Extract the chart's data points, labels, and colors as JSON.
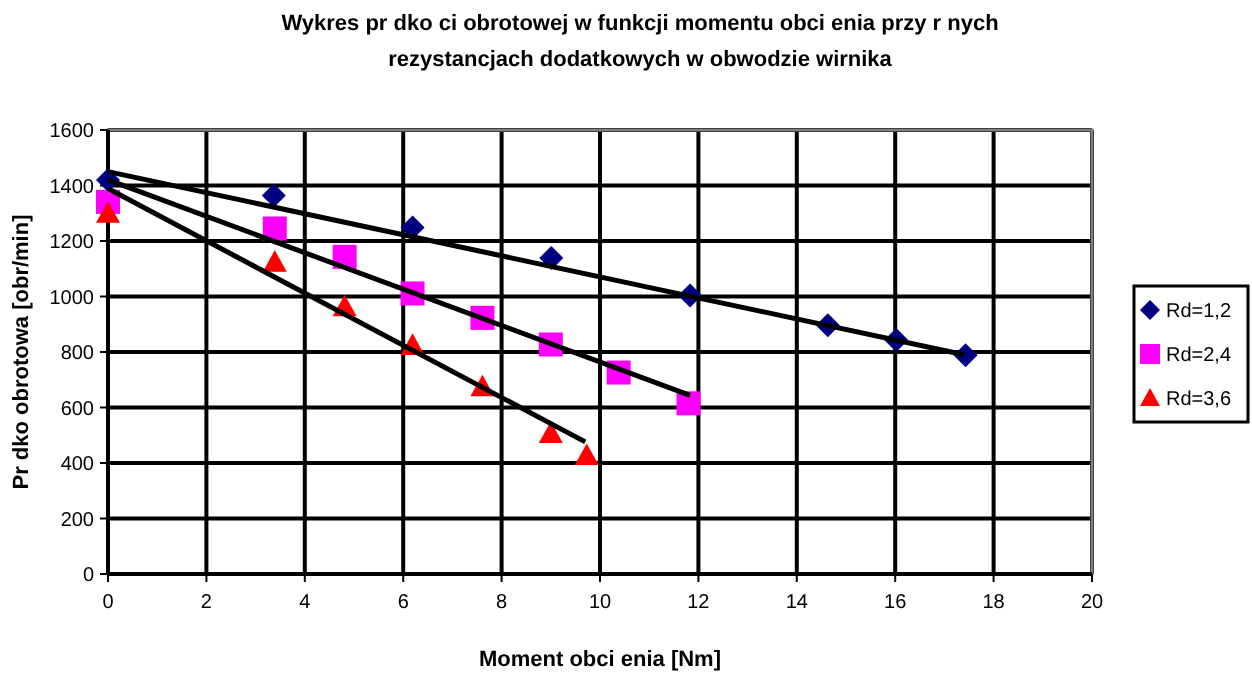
{
  "chart_data": {
    "type": "scatter",
    "title": "Wykres pr  dko  ci obrotowej w funkcji momentu obci    enia przy r    nych",
    "subtitle": "rezystancjach dodatkowych w obwodzie wirnika",
    "xlabel": "Moment obci    enia [Nm]",
    "ylabel": "Pr  dko    obrotowa [obr/min]",
    "xlim": [
      0,
      20
    ],
    "xticks": [
      0,
      2,
      4,
      6,
      8,
      10,
      12,
      14,
      16,
      18,
      20
    ],
    "ylim": [
      0,
      1600
    ],
    "yticks": [
      0,
      200,
      400,
      600,
      800,
      1000,
      1200,
      1400,
      1600
    ],
    "grid": true,
    "legend": "right",
    "series": [
      {
        "name": "Rd=1,2",
        "color": "#000080",
        "marker": "diamond",
        "x": [
          0,
          3.37,
          6.19,
          9.01,
          11.83,
          14.63,
          16.02,
          17.43
        ],
        "values": [
          1420,
          1364,
          1249,
          1139,
          1004,
          896,
          843,
          788
        ]
      },
      {
        "name": "Rd=2,4",
        "color": "#ff00ff",
        "marker": "square",
        "x": [
          0,
          3.39,
          4.81,
          6.19,
          7.61,
          9.0,
          10.38,
          11.8
        ],
        "values": [
          1341,
          1245,
          1143,
          1011,
          923,
          827,
          726,
          615
        ]
      },
      {
        "name": "Rd=3,6",
        "color": "#ff0000",
        "marker": "triangle",
        "x": [
          0,
          3.39,
          4.81,
          6.19,
          7.61,
          9.0,
          9.73
        ],
        "values": [
          1300,
          1124,
          963,
          824,
          675,
          507,
          427
        ]
      },
      {
        "type": "line",
        "color": "#000000",
        "x": [
          0,
          17.4
        ],
        "values": [
          1450,
          790
        ]
      },
      {
        "type": "line",
        "color": "#000000",
        "x": [
          0,
          11.83
        ],
        "values": [
          1420,
          644
        ]
      },
      {
        "type": "line",
        "color": "#000000",
        "x": [
          0,
          9.7
        ],
        "values": [
          1389,
          476
        ]
      }
    ]
  }
}
